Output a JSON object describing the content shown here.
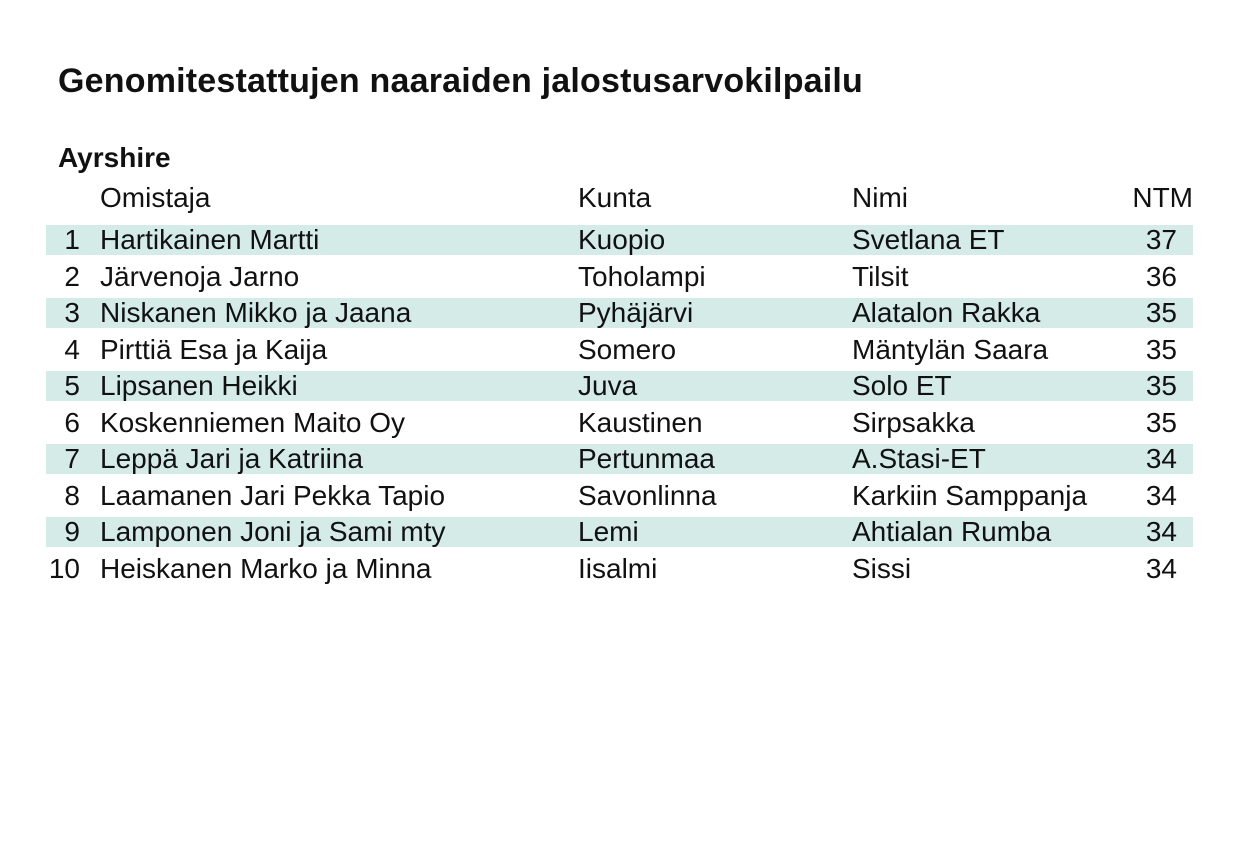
{
  "title": "Genomitestattujen naaraiden jalostusarvokilpailu",
  "section": "Ayrshire",
  "columns": {
    "owner": "Omistaja",
    "town": "Kunta",
    "name": "Nimi",
    "ntm": "NTM"
  },
  "rows": [
    {
      "rank": "1",
      "owner": "Hartikainen Martti",
      "town": "Kuopio",
      "name": "Svetlana ET",
      "ntm": "37"
    },
    {
      "rank": "2",
      "owner": "Järvenoja Jarno",
      "town": "Toholampi",
      "name": "Tilsit",
      "ntm": "36"
    },
    {
      "rank": "3",
      "owner": "Niskanen Mikko ja Jaana",
      "town": "Pyhäjärvi",
      "name": "Alatalon Rakka",
      "ntm": "35"
    },
    {
      "rank": "4",
      "owner": "Pirttiä Esa ja Kaija",
      "town": "Somero",
      "name": "Mäntylän Saara",
      "ntm": "35"
    },
    {
      "rank": "5",
      "owner": "Lipsanen Heikki",
      "town": "Juva",
      "name": "Solo ET",
      "ntm": "35"
    },
    {
      "rank": "6",
      "owner": "Koskenniemen Maito Oy",
      "town": "Kaustinen",
      "name": "Sirpsakka",
      "ntm": "35"
    },
    {
      "rank": "7",
      "owner": "Leppä Jari ja Katriina",
      "town": "Pertunmaa",
      "name": "A.Stasi-ET",
      "ntm": "34"
    },
    {
      "rank": "8",
      "owner": "Laamanen Jari Pekka Tapio",
      "town": "Savonlinna",
      "name": "Karkiin Samppanja",
      "ntm": "34"
    },
    {
      "rank": "9",
      "owner": "Lamponen Joni ja Sami mty",
      "town": "Lemi",
      "name": "Ahtialan Rumba",
      "ntm": "34"
    },
    {
      "rank": "10",
      "owner": "Heiskanen Marko ja Minna",
      "town": "Iisalmi",
      "name": "Sissi",
      "ntm": "34"
    }
  ]
}
